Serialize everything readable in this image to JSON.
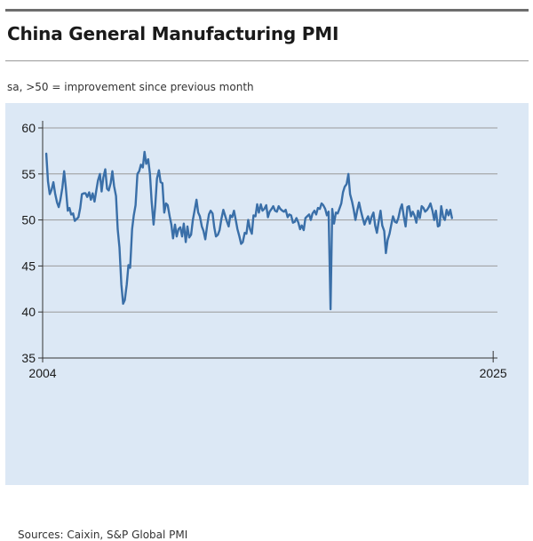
{
  "header": {
    "title": "China General Manufacturing PMI",
    "subtitle": "sa, >50 = improvement since previous month"
  },
  "footer": {
    "source": "Sources: Caixin, S&P Global PMI"
  },
  "colors": {
    "panel": "#dce8f5",
    "line": "#3a6fa8",
    "grid": "#9a9a9a"
  },
  "chart_data": {
    "type": "line",
    "title": "China General Manufacturing PMI",
    "subtitle": "sa, >50 = improvement since previous month",
    "xlabel": "",
    "ylabel": "",
    "ylim": [
      35,
      60
    ],
    "xlim": [
      2004.0,
      2025.2
    ],
    "yticks": [
      35,
      40,
      45,
      50,
      55,
      60
    ],
    "xtick_labels": [
      "2004",
      "2025"
    ],
    "grid": true,
    "series": [
      {
        "values": [
          [
            2004.17,
            57.2
          ],
          [
            2004.25,
            54.2
          ],
          [
            2004.33,
            52.8
          ],
          [
            2004.42,
            53.3
          ],
          [
            2004.5,
            54.1
          ],
          [
            2004.58,
            52.9
          ],
          [
            2004.67,
            51.9
          ],
          [
            2004.75,
            51.4
          ],
          [
            2004.83,
            52.2
          ],
          [
            2004.92,
            53.5
          ],
          [
            2005.0,
            55.3
          ],
          [
            2005.08,
            53.5
          ],
          [
            2005.17,
            51.0
          ],
          [
            2005.25,
            51.3
          ],
          [
            2005.33,
            50.6
          ],
          [
            2005.42,
            50.7
          ],
          [
            2005.5,
            49.9
          ],
          [
            2005.58,
            50.1
          ],
          [
            2005.67,
            50.3
          ],
          [
            2005.75,
            51.3
          ],
          [
            2005.83,
            52.8
          ],
          [
            2005.92,
            52.9
          ],
          [
            2006.0,
            52.9
          ],
          [
            2006.08,
            52.5
          ],
          [
            2006.17,
            53.0
          ],
          [
            2006.25,
            52.2
          ],
          [
            2006.33,
            52.9
          ],
          [
            2006.42,
            52.0
          ],
          [
            2006.5,
            53.2
          ],
          [
            2006.58,
            54.3
          ],
          [
            2006.67,
            55.0
          ],
          [
            2006.75,
            53.1
          ],
          [
            2006.83,
            54.6
          ],
          [
            2006.92,
            55.5
          ],
          [
            2007.0,
            53.4
          ],
          [
            2007.08,
            53.2
          ],
          [
            2007.17,
            54.0
          ],
          [
            2007.25,
            55.3
          ],
          [
            2007.33,
            53.7
          ],
          [
            2007.42,
            52.6
          ],
          [
            2007.5,
            49.0
          ],
          [
            2007.58,
            47.0
          ],
          [
            2007.67,
            43.0
          ],
          [
            2007.75,
            40.9
          ],
          [
            2007.83,
            41.3
          ],
          [
            2007.92,
            43.0
          ],
          [
            2008.0,
            45.1
          ],
          [
            2008.08,
            44.8
          ],
          [
            2008.17,
            49.0
          ],
          [
            2008.25,
            50.5
          ],
          [
            2008.33,
            51.6
          ],
          [
            2008.42,
            55.0
          ],
          [
            2008.5,
            55.3
          ],
          [
            2008.58,
            56.0
          ],
          [
            2008.67,
            55.7
          ],
          [
            2008.75,
            57.4
          ],
          [
            2008.83,
            56.1
          ],
          [
            2008.92,
            56.6
          ],
          [
            2009.0,
            55.0
          ],
          [
            2009.08,
            52.0
          ],
          [
            2009.17,
            49.5
          ],
          [
            2009.25,
            51.6
          ],
          [
            2009.33,
            54.5
          ],
          [
            2009.42,
            55.4
          ],
          [
            2009.5,
            54.1
          ],
          [
            2009.58,
            54.0
          ],
          [
            2009.67,
            50.8
          ],
          [
            2009.75,
            51.8
          ],
          [
            2009.83,
            51.6
          ],
          [
            2009.92,
            50.4
          ],
          [
            2010.0,
            49.5
          ],
          [
            2010.08,
            48.0
          ],
          [
            2010.17,
            49.5
          ],
          [
            2010.25,
            48.2
          ],
          [
            2010.33,
            49.0
          ],
          [
            2010.42,
            49.2
          ],
          [
            2010.5,
            48.2
          ],
          [
            2010.58,
            49.6
          ],
          [
            2010.67,
            47.6
          ],
          [
            2010.75,
            49.3
          ],
          [
            2010.83,
            48.1
          ],
          [
            2010.92,
            48.4
          ],
          [
            2011.0,
            50.0
          ],
          [
            2011.08,
            51.0
          ],
          [
            2011.17,
            52.2
          ],
          [
            2011.25,
            50.8
          ],
          [
            2011.33,
            50.4
          ],
          [
            2011.42,
            49.3
          ],
          [
            2011.5,
            48.8
          ],
          [
            2011.58,
            47.9
          ],
          [
            2011.67,
            49.4
          ],
          [
            2011.75,
            50.6
          ],
          [
            2011.83,
            51.0
          ],
          [
            2011.92,
            50.7
          ],
          [
            2012.0,
            49.2
          ],
          [
            2012.08,
            48.2
          ],
          [
            2012.17,
            48.4
          ],
          [
            2012.25,
            48.9
          ],
          [
            2012.33,
            50.1
          ],
          [
            2012.42,
            51.1
          ],
          [
            2012.5,
            50.5
          ],
          [
            2012.58,
            49.9
          ],
          [
            2012.67,
            49.3
          ],
          [
            2012.75,
            50.5
          ],
          [
            2012.83,
            50.3
          ],
          [
            2012.92,
            51.0
          ],
          [
            2013.0,
            50.0
          ],
          [
            2013.08,
            49.0
          ],
          [
            2013.17,
            48.2
          ],
          [
            2013.25,
            47.4
          ],
          [
            2013.33,
            47.6
          ],
          [
            2013.42,
            48.6
          ],
          [
            2013.5,
            48.5
          ],
          [
            2013.58,
            50.0
          ],
          [
            2013.67,
            49.0
          ],
          [
            2013.75,
            48.5
          ],
          [
            2013.83,
            50.5
          ],
          [
            2013.92,
            50.4
          ],
          [
            2014.0,
            51.7
          ],
          [
            2014.08,
            50.8
          ],
          [
            2014.17,
            51.7
          ],
          [
            2014.25,
            51.0
          ],
          [
            2014.33,
            51.2
          ],
          [
            2014.42,
            51.6
          ],
          [
            2014.5,
            50.3
          ],
          [
            2014.58,
            50.9
          ],
          [
            2014.67,
            51.2
          ],
          [
            2014.75,
            51.5
          ],
          [
            2014.83,
            51.0
          ],
          [
            2014.92,
            50.9
          ],
          [
            2015.0,
            51.5
          ],
          [
            2015.08,
            51.2
          ],
          [
            2015.17,
            51.0
          ],
          [
            2015.25,
            50.9
          ],
          [
            2015.33,
            51.1
          ],
          [
            2015.42,
            50.3
          ],
          [
            2015.5,
            50.6
          ],
          [
            2015.58,
            50.5
          ],
          [
            2015.67,
            49.7
          ],
          [
            2015.75,
            49.8
          ],
          [
            2015.83,
            50.2
          ],
          [
            2015.92,
            49.7
          ],
          [
            2016.0,
            49.0
          ],
          [
            2016.08,
            49.4
          ],
          [
            2016.17,
            48.9
          ],
          [
            2016.25,
            50.2
          ],
          [
            2016.33,
            50.4
          ],
          [
            2016.42,
            50.6
          ],
          [
            2016.5,
            50.0
          ],
          [
            2016.58,
            50.7
          ],
          [
            2016.67,
            51.0
          ],
          [
            2016.75,
            50.6
          ],
          [
            2016.83,
            51.3
          ],
          [
            2016.92,
            51.2
          ],
          [
            2017.0,
            51.8
          ],
          [
            2017.08,
            51.6
          ],
          [
            2017.17,
            51.2
          ],
          [
            2017.25,
            50.5
          ],
          [
            2017.33,
            50.9
          ],
          [
            2017.42,
            40.3
          ],
          [
            2017.5,
            51.2
          ],
          [
            2017.58,
            49.6
          ],
          [
            2017.67,
            50.8
          ],
          [
            2017.75,
            50.7
          ],
          [
            2017.83,
            51.2
          ],
          [
            2017.92,
            51.8
          ],
          [
            2018.0,
            53.0
          ],
          [
            2018.08,
            53.6
          ],
          [
            2018.17,
            53.9
          ],
          [
            2018.25,
            55.0
          ],
          [
            2018.33,
            52.8
          ],
          [
            2018.42,
            52.0
          ],
          [
            2018.5,
            51.1
          ],
          [
            2018.58,
            50.0
          ],
          [
            2018.67,
            51.1
          ],
          [
            2018.75,
            51.9
          ],
          [
            2018.83,
            51.0
          ],
          [
            2018.92,
            50.2
          ],
          [
            2019.0,
            49.5
          ],
          [
            2019.08,
            50.0
          ],
          [
            2019.17,
            50.4
          ],
          [
            2019.25,
            49.6
          ],
          [
            2019.33,
            50.3
          ],
          [
            2019.42,
            50.8
          ],
          [
            2019.5,
            49.4
          ],
          [
            2019.58,
            48.6
          ],
          [
            2019.67,
            49.9
          ],
          [
            2019.75,
            51.0
          ],
          [
            2019.83,
            49.4
          ],
          [
            2019.92,
            48.8
          ],
          [
            2020.0,
            46.4
          ],
          [
            2020.08,
            47.8
          ],
          [
            2020.17,
            48.5
          ],
          [
            2020.25,
            49.5
          ],
          [
            2020.33,
            50.4
          ],
          [
            2020.42,
            49.8
          ],
          [
            2020.5,
            49.7
          ],
          [
            2020.58,
            50.2
          ],
          [
            2020.67,
            51.2
          ],
          [
            2020.75,
            51.7
          ],
          [
            2020.83,
            50.4
          ],
          [
            2020.92,
            49.3
          ],
          [
            2021.0,
            51.4
          ],
          [
            2021.08,
            51.5
          ],
          [
            2021.17,
            50.4
          ],
          [
            2021.25,
            50.9
          ],
          [
            2021.33,
            50.5
          ],
          [
            2021.42,
            49.7
          ],
          [
            2021.5,
            51.0
          ],
          [
            2021.58,
            50.2
          ],
          [
            2021.67,
            51.5
          ],
          [
            2021.75,
            51.3
          ],
          [
            2021.83,
            50.9
          ],
          [
            2021.92,
            51.1
          ],
          [
            2022.0,
            51.4
          ],
          [
            2022.08,
            51.8
          ],
          [
            2022.17,
            51.0
          ],
          [
            2022.25,
            50.0
          ],
          [
            2022.33,
            51.0
          ],
          [
            2022.42,
            49.3
          ],
          [
            2022.5,
            49.4
          ],
          [
            2022.58,
            51.5
          ],
          [
            2022.67,
            50.3
          ],
          [
            2022.75,
            50.0
          ],
          [
            2022.83,
            51.1
          ],
          [
            2022.92,
            50.5
          ],
          [
            2023.0,
            51.1
          ],
          [
            2023.08,
            50.2
          ]
        ]
      }
    ]
  }
}
